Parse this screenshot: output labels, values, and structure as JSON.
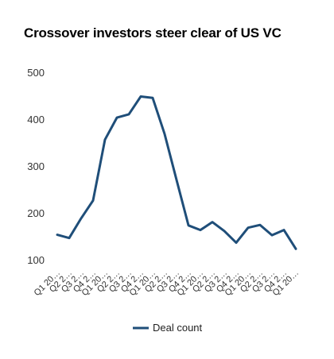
{
  "chart_data": {
    "type": "line",
    "title": "Crossover investors steer clear of US VC",
    "xlabel": "",
    "ylabel": "",
    "ylim": [
      100,
      500
    ],
    "yticks": [
      100,
      200,
      300,
      400,
      500
    ],
    "grid": false,
    "legend_position": "bottom",
    "color": "#1f4e79",
    "x": [
      "Q1 20…",
      "Q2 2…",
      "Q3 2…",
      "Q4 2…",
      "Q1 20…",
      "Q2 2…",
      "Q3 2…",
      "Q4 2…",
      "Q1 20…",
      "Q2 2…",
      "Q3 2…",
      "Q4 2…",
      "Q1 20…",
      "Q2 2…",
      "Q3 2…",
      "Q4 2…",
      "Q1 20…",
      "Q2 2…",
      "Q3 2…",
      "Q4 2…",
      "Q1 20…"
    ],
    "series": [
      {
        "name": "Deal count",
        "values": [
          155,
          148,
          190,
          228,
          358,
          405,
          412,
          450,
          447,
          370,
          272,
          175,
          165,
          182,
          163,
          138,
          170,
          176,
          154,
          165,
          125
        ]
      }
    ]
  }
}
